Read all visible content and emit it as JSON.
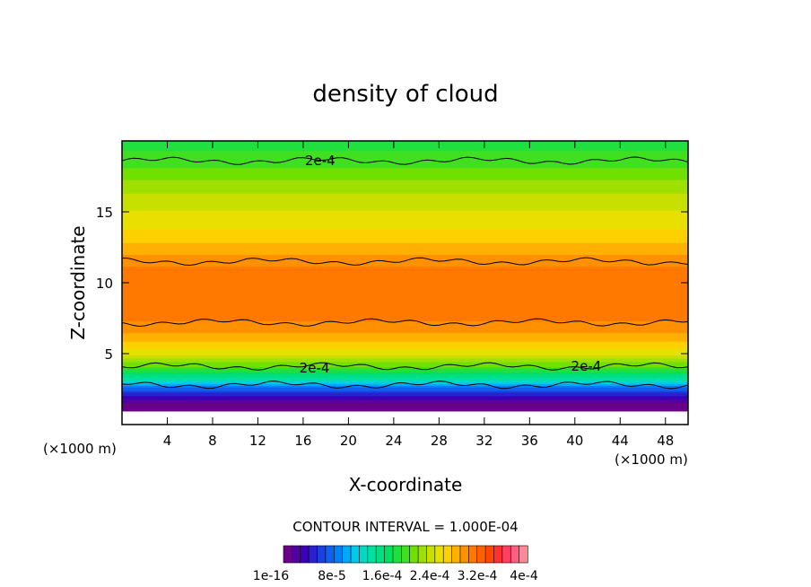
{
  "chart_data": {
    "type": "heatmap",
    "title": "density of cloud",
    "xlabel": "X-coordinate",
    "ylabel": "Z-coordinate",
    "x_unit_label": "(×1000 m)",
    "x_unit_label_right": "(×1000 m)",
    "xlim": [
      0,
      50
    ],
    "ylim": [
      0,
      20
    ],
    "x_ticks": [
      4,
      8,
      12,
      16,
      20,
      24,
      28,
      32,
      36,
      40,
      44,
      48
    ],
    "y_ticks": [
      5,
      10,
      15
    ],
    "contour_interval_text": "CONTOUR INTERVAL = 1.000E-04",
    "contour_labels": [
      {
        "text": "2e-4",
        "x": 17.5,
        "z": 18.6
      },
      {
        "text": "2e-4",
        "x": 17.0,
        "z": 4.0
      },
      {
        "text": "2e-4",
        "x": 41.0,
        "z": 4.1
      }
    ],
    "contour_lines_z": [
      18.6,
      11.5,
      7.2,
      4.1,
      2.8
    ],
    "vertical_profile": [
      {
        "z": 1.0,
        "value": 0.0
      },
      {
        "z": 1.5,
        "value": 1e-05
      },
      {
        "z": 2.0,
        "value": 4e-05
      },
      {
        "z": 2.6,
        "value": 8e-05
      },
      {
        "z": 3.2,
        "value": 0.00014
      },
      {
        "z": 4.0,
        "value": 0.0002
      },
      {
        "z": 5.0,
        "value": 0.00025
      },
      {
        "z": 6.0,
        "value": 0.00028
      },
      {
        "z": 7.0,
        "value": 0.0003
      },
      {
        "z": 8.0,
        "value": 0.00031
      },
      {
        "z": 10.0,
        "value": 0.000315
      },
      {
        "z": 11.5,
        "value": 0.0003
      },
      {
        "z": 12.5,
        "value": 0.00028
      },
      {
        "z": 14.0,
        "value": 0.00026
      },
      {
        "z": 16.0,
        "value": 0.00024
      },
      {
        "z": 18.6,
        "value": 0.0002
      },
      {
        "z": 19.6,
        "value": 0.00019
      }
    ],
    "colorbar": {
      "colors": [
        "#6a0088",
        "#5200a0",
        "#3a00b8",
        "#2a20d0",
        "#1a40e0",
        "#1060f0",
        "#0080f8",
        "#00a8f8",
        "#00c8e8",
        "#00d8c8",
        "#00e0a0",
        "#00e080",
        "#00e060",
        "#20e040",
        "#40e020",
        "#70e000",
        "#a0e000",
        "#c8e000",
        "#e8e000",
        "#ffd000",
        "#ffb000",
        "#ff9000",
        "#ff7800",
        "#ff6000",
        "#ff4800",
        "#ff3030",
        "#ff4060",
        "#ff6080",
        "#ff8898"
      ],
      "tick_labels": [
        "1e-16",
        "8e-5",
        "1.6e-4",
        "2.4e-4",
        "3.2e-4",
        "4e-4"
      ],
      "range": [
        1e-16,
        0.0004
      ]
    }
  }
}
